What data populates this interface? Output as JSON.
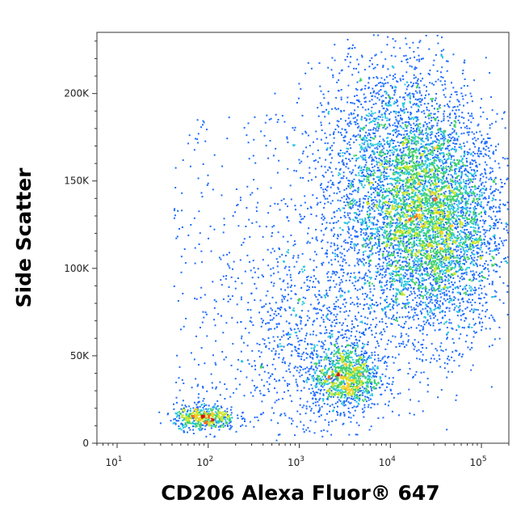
{
  "chart_data": {
    "type": "scatter",
    "title": "",
    "xlabel": "CD206 Alexa Fluor® 647",
    "ylabel": "Side Scatter",
    "x_scale": "log",
    "xlim": [
      6,
      200000
    ],
    "ylim": [
      0,
      235000
    ],
    "x_ticks": [
      {
        "value": 10,
        "base": "10",
        "exp": "1"
      },
      {
        "value": 100,
        "base": "10",
        "exp": "2"
      },
      {
        "value": 1000,
        "base": "10",
        "exp": "3"
      },
      {
        "value": 10000,
        "base": "10",
        "exp": "4"
      },
      {
        "value": 100000,
        "base": "10",
        "exp": "5"
      }
    ],
    "y_ticks": [
      {
        "value": 0,
        "label": "0"
      },
      {
        "value": 50000,
        "label": "50K"
      },
      {
        "value": 100000,
        "label": "100K"
      },
      {
        "value": 150000,
        "label": "150K"
      },
      {
        "value": 200000,
        "label": "200K"
      }
    ],
    "grid": false,
    "colormap": [
      "#1a1aa8",
      "#1e6cff",
      "#29c6e0",
      "#3fd06a",
      "#c8e62a",
      "#ffcc22",
      "#ff6a1a",
      "#d01414"
    ],
    "populations": [
      {
        "x_center": 30000,
        "y_center": 125000,
        "x_spread_log": 0.38,
        "y_spread": 32000,
        "relative_size": 1.0
      },
      {
        "x_center": 10000,
        "y_center": 155000,
        "x_spread_log": 0.42,
        "y_spread": 38000,
        "relative_size": 0.55
      },
      {
        "x_center": 3200,
        "y_center": 38000,
        "x_spread_log": 0.18,
        "y_spread": 9000,
        "relative_size": 0.22
      },
      {
        "x_center": 90,
        "y_center": 15000,
        "x_spread_log": 0.17,
        "y_spread": 3500,
        "relative_size": 0.12
      },
      {
        "x_center": 1500,
        "y_center": 60000,
        "x_spread_log": 0.45,
        "y_spread": 30000,
        "relative_size": 0.2
      }
    ]
  }
}
